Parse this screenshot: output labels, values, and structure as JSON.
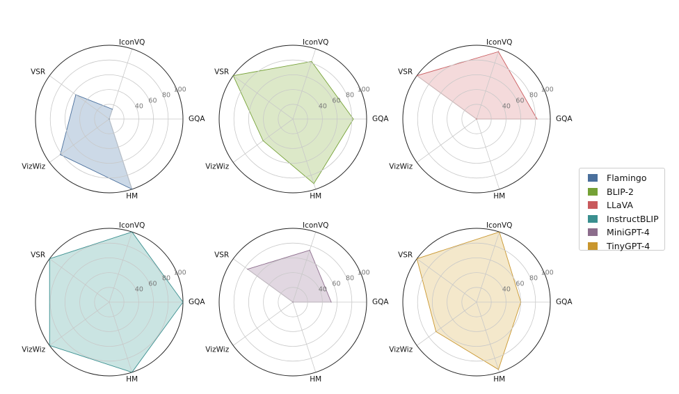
{
  "chart_data": {
    "type": "radar",
    "axes": [
      "GQA",
      "IconVQ",
      "VSR",
      "VizWiz",
      "HM"
    ],
    "rticks": [
      40,
      60,
      80,
      100
    ],
    "rlim": [
      0,
      100
    ],
    "grid": true,
    "legend_position": "right",
    "series": [
      {
        "name": "Flamingo",
        "color": "#4a6f9c",
        "fill": "#aabfd7",
        "values": [
          0,
          14,
          56,
          82,
          100
        ]
      },
      {
        "name": "BLIP-2",
        "color": "#75a136",
        "fill": "#c4d9a4",
        "values": [
          82,
          82,
          100,
          50,
          92
        ]
      },
      {
        "name": "LLaVA",
        "color": "#c95a5d",
        "fill": "#edc1c3",
        "values": [
          82,
          96,
          100,
          0,
          0
        ]
      },
      {
        "name": "InstructBLIP",
        "color": "#3a8f8f",
        "fill": "#a6d2ce",
        "values": [
          100,
          100,
          100,
          100,
          100
        ]
      },
      {
        "name": "MiniGPT-4",
        "color": "#8c6d8c",
        "fill": "#cdbccd",
        "values": [
          52,
          74,
          76,
          0,
          0
        ]
      },
      {
        "name": "TinyGPT-4",
        "color": "#c9962e",
        "fill": "#edd9a9",
        "values": [
          60,
          100,
          100,
          68,
          96
        ]
      }
    ]
  }
}
